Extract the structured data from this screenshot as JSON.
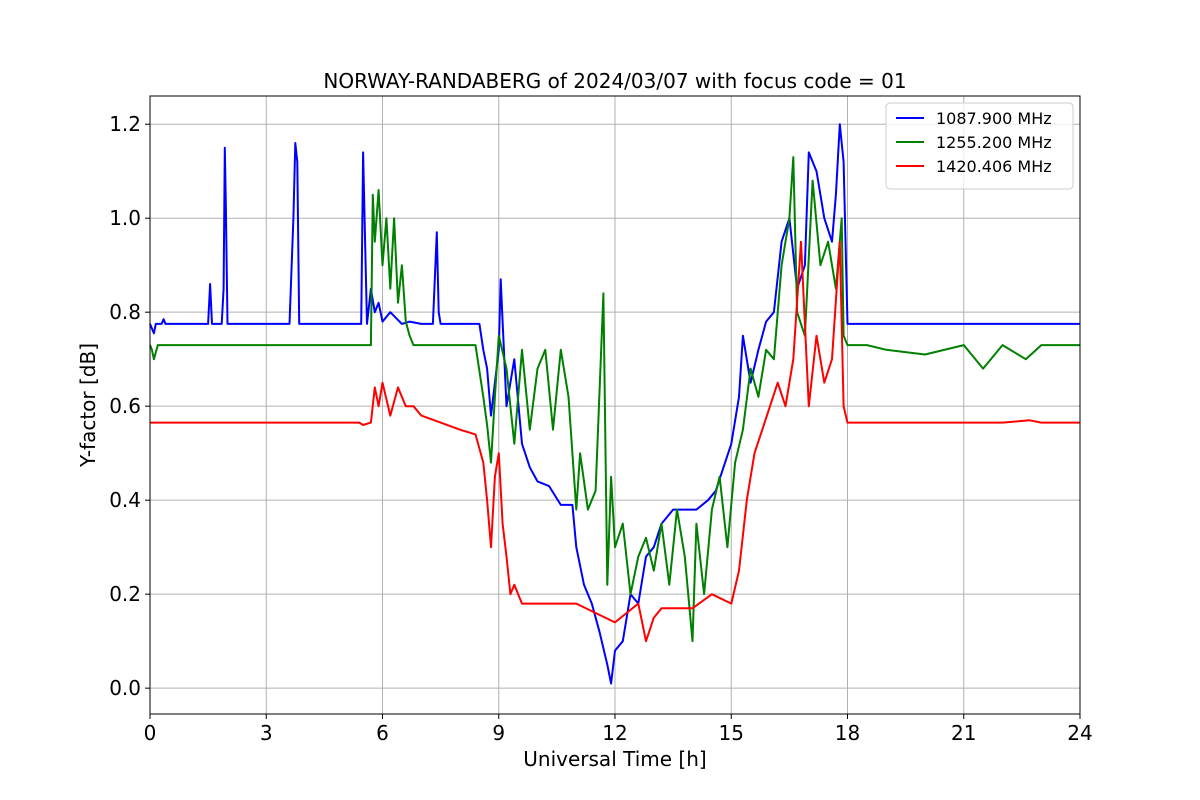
{
  "chart_data": {
    "type": "line",
    "title": "NORWAY-RANDABERG of 2024/03/07 with focus code = 01",
    "xlabel": "Universal Time [h]",
    "ylabel": "Y-factor [dB]",
    "xlim": [
      0,
      24
    ],
    "ylim": [
      -0.055,
      1.26
    ],
    "x_ticks": [
      0,
      3,
      6,
      9,
      12,
      15,
      18,
      21,
      24
    ],
    "y_ticks": [
      0.0,
      0.2,
      0.4,
      0.6,
      0.8,
      1.0,
      1.2
    ],
    "y_tick_labels": [
      "0.0",
      "0.2",
      "0.4",
      "0.6",
      "0.8",
      "1.0",
      "1.2"
    ],
    "grid": true,
    "legend_position": "top-right",
    "series": [
      {
        "name": "1087.900 MHz",
        "color": "#0000ff",
        "x": [
          0,
          0.1,
          0.15,
          0.2,
          0.3,
          0.35,
          0.4,
          1.0,
          1.5,
          1.55,
          1.6,
          1.65,
          1.7,
          1.85,
          1.9,
          1.93,
          1.96,
          2.0,
          2.05,
          2.2,
          3.0,
          3.6,
          3.7,
          3.75,
          3.8,
          3.85,
          3.9,
          4.0,
          5.0,
          5.45,
          5.5,
          5.55,
          5.6,
          5.7,
          5.8,
          5.9,
          6.0,
          6.2,
          6.5,
          6.7,
          7.0,
          7.3,
          7.4,
          7.45,
          7.5,
          7.6,
          8.0,
          8.5,
          8.6,
          8.7,
          8.8,
          8.9,
          9.0,
          9.05,
          9.1,
          9.2,
          9.4,
          9.6,
          9.8,
          10.0,
          10.3,
          10.6,
          10.9,
          11.0,
          11.2,
          11.4,
          11.6,
          11.8,
          11.9,
          12.0,
          12.2,
          12.4,
          12.6,
          12.8,
          13.0,
          13.2,
          13.5,
          13.8,
          14.1,
          14.4,
          14.6,
          14.8,
          15.0,
          15.2,
          15.3,
          15.5,
          15.7,
          15.9,
          16.1,
          16.3,
          16.5,
          16.7,
          16.9,
          17.0,
          17.2,
          17.4,
          17.6,
          17.7,
          17.8,
          17.9,
          18.0,
          18.5,
          19.0,
          20.0,
          21.0,
          22.0,
          23.0,
          24.0
        ],
        "y": [
          0.775,
          0.755,
          0.775,
          0.775,
          0.775,
          0.785,
          0.775,
          0.775,
          0.775,
          0.86,
          0.775,
          0.775,
          0.775,
          0.775,
          0.85,
          1.15,
          1.02,
          0.775,
          0.775,
          0.775,
          0.775,
          0.775,
          1.0,
          1.16,
          1.12,
          0.775,
          0.775,
          0.775,
          0.775,
          0.775,
          1.14,
          0.95,
          0.775,
          0.85,
          0.8,
          0.82,
          0.78,
          0.8,
          0.775,
          0.78,
          0.775,
          0.775,
          0.97,
          0.8,
          0.775,
          0.775,
          0.775,
          0.775,
          0.72,
          0.68,
          0.58,
          0.65,
          0.72,
          0.87,
          0.78,
          0.6,
          0.7,
          0.52,
          0.47,
          0.44,
          0.43,
          0.39,
          0.39,
          0.3,
          0.22,
          0.18,
          0.12,
          0.05,
          0.01,
          0.08,
          0.1,
          0.2,
          0.18,
          0.28,
          0.3,
          0.35,
          0.38,
          0.38,
          0.38,
          0.4,
          0.42,
          0.47,
          0.52,
          0.62,
          0.75,
          0.65,
          0.72,
          0.78,
          0.8,
          0.95,
          1.0,
          0.85,
          0.9,
          1.14,
          1.1,
          1.0,
          0.95,
          1.05,
          1.2,
          1.12,
          0.775,
          0.775,
          0.775,
          0.775,
          0.775,
          0.775,
          0.775,
          0.775
        ]
      },
      {
        "name": "1255.200 MHz",
        "color": "#008000",
        "x": [
          0,
          0.05,
          0.1,
          0.2,
          0.5,
          1.0,
          1.5,
          2.0,
          3.0,
          4.0,
          5.0,
          5.7,
          5.75,
          5.8,
          5.9,
          6.0,
          6.1,
          6.2,
          6.3,
          6.4,
          6.5,
          6.6,
          6.7,
          6.8,
          7.0,
          7.2,
          7.5,
          8.0,
          8.4,
          8.6,
          8.7,
          8.8,
          8.9,
          9.0,
          9.2,
          9.4,
          9.6,
          9.8,
          10.0,
          10.2,
          10.4,
          10.6,
          10.8,
          11.0,
          11.1,
          11.3,
          11.5,
          11.7,
          11.8,
          11.9,
          12.0,
          12.2,
          12.4,
          12.6,
          12.8,
          13.0,
          13.2,
          13.4,
          13.6,
          13.8,
          14.0,
          14.1,
          14.3,
          14.5,
          14.7,
          14.9,
          15.1,
          15.3,
          15.5,
          15.7,
          15.9,
          16.1,
          16.3,
          16.5,
          16.6,
          16.7,
          16.9,
          17.1,
          17.3,
          17.5,
          17.7,
          17.85,
          17.9,
          18.0,
          18.5,
          19.0,
          20.0,
          21.0,
          21.5,
          22.0,
          22.6,
          23.0,
          24.0
        ],
        "y": [
          0.73,
          0.72,
          0.7,
          0.73,
          0.73,
          0.73,
          0.73,
          0.73,
          0.73,
          0.73,
          0.73,
          0.73,
          1.05,
          0.95,
          1.06,
          0.9,
          1.0,
          0.85,
          1.0,
          0.82,
          0.9,
          0.78,
          0.75,
          0.73,
          0.73,
          0.73,
          0.73,
          0.73,
          0.73,
          0.62,
          0.56,
          0.48,
          0.62,
          0.75,
          0.68,
          0.52,
          0.72,
          0.55,
          0.68,
          0.72,
          0.55,
          0.72,
          0.62,
          0.38,
          0.5,
          0.38,
          0.42,
          0.84,
          0.22,
          0.45,
          0.3,
          0.35,
          0.2,
          0.28,
          0.32,
          0.25,
          0.35,
          0.22,
          0.38,
          0.28,
          0.1,
          0.35,
          0.2,
          0.38,
          0.45,
          0.3,
          0.48,
          0.55,
          0.68,
          0.62,
          0.72,
          0.7,
          0.9,
          1.0,
          1.13,
          0.8,
          0.75,
          1.08,
          0.9,
          0.95,
          0.85,
          1.0,
          0.75,
          0.73,
          0.73,
          0.72,
          0.71,
          0.73,
          0.68,
          0.73,
          0.7,
          0.73,
          0.73
        ]
      },
      {
        "name": "1420.406 MHz",
        "color": "#ff0000",
        "x": [
          0,
          0.5,
          1.0,
          2.0,
          3.0,
          4.0,
          5.0,
          5.4,
          5.5,
          5.7,
          5.8,
          5.9,
          6.0,
          6.2,
          6.4,
          6.6,
          6.8,
          7.0,
          7.5,
          8.0,
          8.4,
          8.6,
          8.7,
          8.8,
          8.9,
          9.0,
          9.1,
          9.2,
          9.3,
          9.4,
          9.6,
          10.0,
          10.5,
          11.0,
          11.5,
          12.0,
          12.3,
          12.6,
          12.8,
          13.0,
          13.2,
          13.5,
          14.0,
          14.5,
          15.0,
          15.2,
          15.4,
          15.6,
          15.8,
          16.0,
          16.2,
          16.4,
          16.6,
          16.8,
          17.0,
          17.2,
          17.4,
          17.6,
          17.8,
          17.9,
          18.0,
          18.5,
          19.0,
          20.0,
          21.0,
          22.0,
          22.7,
          23.0,
          24.0
        ],
        "y": [
          0.565,
          0.565,
          0.565,
          0.565,
          0.565,
          0.565,
          0.565,
          0.565,
          0.56,
          0.565,
          0.64,
          0.6,
          0.65,
          0.58,
          0.64,
          0.6,
          0.6,
          0.58,
          0.565,
          0.55,
          0.54,
          0.48,
          0.4,
          0.3,
          0.45,
          0.5,
          0.35,
          0.28,
          0.2,
          0.22,
          0.18,
          0.18,
          0.18,
          0.18,
          0.16,
          0.14,
          0.16,
          0.18,
          0.1,
          0.15,
          0.17,
          0.17,
          0.17,
          0.2,
          0.18,
          0.25,
          0.4,
          0.5,
          0.55,
          0.6,
          0.65,
          0.6,
          0.7,
          0.95,
          0.6,
          0.75,
          0.65,
          0.7,
          0.95,
          0.6,
          0.565,
          0.565,
          0.565,
          0.565,
          0.565,
          0.565,
          0.57,
          0.565,
          0.565
        ]
      }
    ]
  }
}
